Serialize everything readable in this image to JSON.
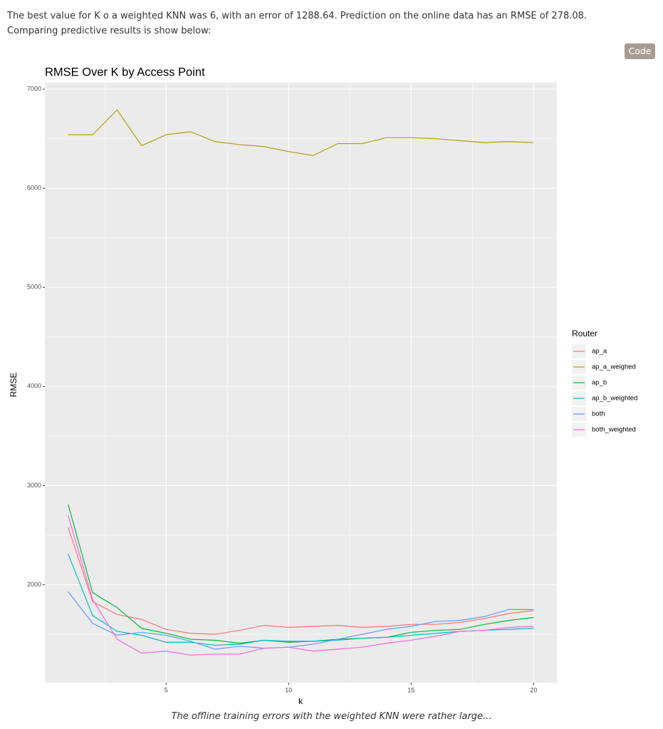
{
  "intro": "The best value for K o a weighted KNN was 6, with an error of 1288.64. Prediction on the online data has an RMSE of 278.08. Comparing predictive results is show below:",
  "code_button": "Code",
  "chart_data": {
    "type": "line",
    "title": "RMSE Over K by Access Point",
    "x_label": "k",
    "y_label": "RMSE",
    "legend_title": "Router",
    "legend_position": "right",
    "grid": true,
    "x": [
      1,
      2,
      3,
      4,
      5,
      6,
      7,
      8,
      9,
      10,
      11,
      12,
      13,
      14,
      15,
      16,
      17,
      18,
      19,
      20
    ],
    "xlim": [
      0.05,
      20.95
    ],
    "xticks": [
      5,
      10,
      15,
      20
    ],
    "ylim": [
      1012,
      7065
    ],
    "yticks": [
      2000,
      3000,
      4000,
      5000,
      6000,
      7000
    ],
    "series": [
      {
        "name": "ap_a",
        "color": "#F8766D",
        "values": [
          2580,
          1830,
          1700,
          1650,
          1550,
          1510,
          1500,
          1540,
          1590,
          1570,
          1580,
          1590,
          1570,
          1580,
          1600,
          1600,
          1620,
          1660,
          1710,
          1740
        ]
      },
      {
        "name": "ap_a_weighed",
        "color": "#B79F00",
        "values": [
          6540,
          6540,
          6790,
          6430,
          6540,
          6570,
          6470,
          6440,
          6420,
          6370,
          6330,
          6450,
          6450,
          6510,
          6510,
          6500,
          6480,
          6460,
          6470,
          6460
        ]
      },
      {
        "name": "ap_b",
        "color": "#00BA38",
        "values": [
          2810,
          1920,
          1770,
          1560,
          1510,
          1450,
          1440,
          1410,
          1440,
          1420,
          1430,
          1450,
          1460,
          1470,
          1520,
          1540,
          1550,
          1600,
          1640,
          1670
        ]
      },
      {
        "name": "ap_b_weighted",
        "color": "#00BFC4",
        "values": [
          2310,
          1690,
          1530,
          1490,
          1420,
          1420,
          1390,
          1400,
          1440,
          1430,
          1430,
          1440,
          1460,
          1470,
          1490,
          1510,
          1530,
          1540,
          1550,
          1560
        ]
      },
      {
        "name": "both",
        "color": "#619CFF",
        "values": [
          1930,
          1610,
          1490,
          1520,
          1490,
          1430,
          1350,
          1380,
          1360,
          1370,
          1400,
          1450,
          1500,
          1550,
          1580,
          1630,
          1640,
          1680,
          1750,
          1750
        ]
      },
      {
        "name": "both_weighted",
        "color": "#F564E3",
        "values": [
          2700,
          1850,
          1450,
          1310,
          1330,
          1290,
          1300,
          1300,
          1360,
          1370,
          1330,
          1350,
          1370,
          1410,
          1440,
          1480,
          1530,
          1540,
          1570,
          1580
        ]
      }
    ]
  },
  "caption": "The offline training errors with the weighted KNN were rather large..."
}
